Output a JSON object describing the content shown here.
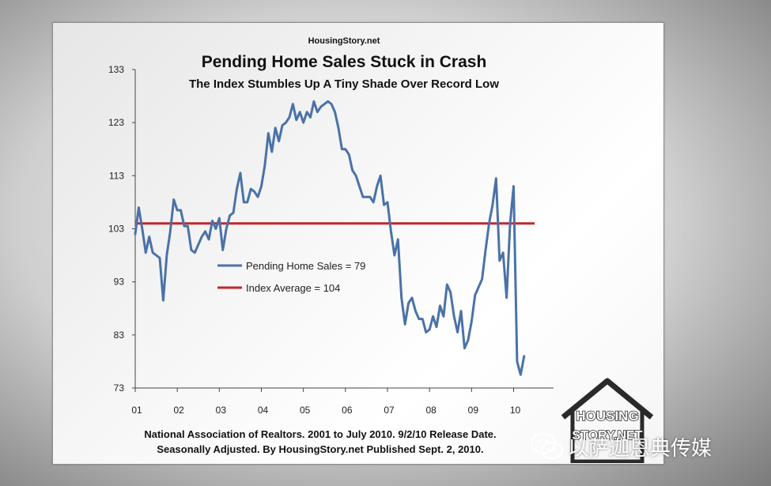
{
  "source_label": "HousingStory.net",
  "footnote": {
    "line1": "National Association of Realtors. 2001 to July 2010. 9/2/10 Release Date.",
    "line2": "Seasonally Adjusted. By HousingStory.net Published Sept. 2, 2010."
  },
  "logo": {
    "line1": "HOUSING",
    "line2": "STORY.NET"
  },
  "watermark": {
    "text": "以萨迦恩典传媒"
  },
  "colors": {
    "pending_sales_line": "#4a72a8",
    "average_line": "#c0262d"
  },
  "chart_data": {
    "type": "line",
    "title": "Pending Home Sales Stuck in Crash",
    "subtitle": "The Index Stumbles Up A Tiny Shade Over Record Low",
    "xlabel": "",
    "ylabel": "",
    "ylim": [
      73,
      133
    ],
    "yticks": [
      "73",
      "83",
      "93",
      "103",
      "113",
      "123",
      "133"
    ],
    "xlim": [
      2001.0,
      2010.95
    ],
    "xticks": [
      "01",
      "02",
      "03",
      "04",
      "05",
      "06",
      "07",
      "08",
      "09",
      "10"
    ],
    "grid": false,
    "legend_position": "center-left",
    "series": [
      {
        "name": "Pending Home Sales = 79",
        "values": [
          102,
          107,
          103,
          98.5,
          101.5,
          98.5,
          98,
          97.5,
          89.5,
          98,
          102.5,
          108.5,
          106.5,
          106.5,
          103.5,
          103.5,
          99,
          98.5,
          100,
          101.5,
          102.5,
          101,
          104.5,
          103,
          105,
          99,
          103,
          105.5,
          106,
          110.5,
          113.5,
          108,
          108,
          110.5,
          110,
          109,
          111,
          115,
          121,
          117.5,
          122,
          119.5,
          122.5,
          123,
          124,
          126.5,
          123.5,
          125,
          123,
          125,
          124,
          127,
          125,
          126,
          126.5,
          127,
          126.5,
          125,
          122,
          118,
          118,
          117,
          114,
          113,
          111,
          109,
          109,
          109,
          108,
          111,
          113,
          107.5,
          108,
          102.5,
          98,
          101,
          90,
          85,
          89,
          90,
          87.5,
          86,
          86,
          83.5,
          84,
          86.5,
          84.5,
          88.5,
          86.5,
          92.5,
          91,
          86.5,
          83.5,
          87.5,
          80.5,
          82,
          85.5,
          90.5,
          92,
          93.5,
          99,
          104,
          107.5,
          112.5,
          97,
          98.5,
          90,
          104,
          111,
          78,
          75.5,
          79
        ]
      },
      {
        "name": "Index Average = 104",
        "values": [
          104,
          104
        ]
      }
    ]
  }
}
